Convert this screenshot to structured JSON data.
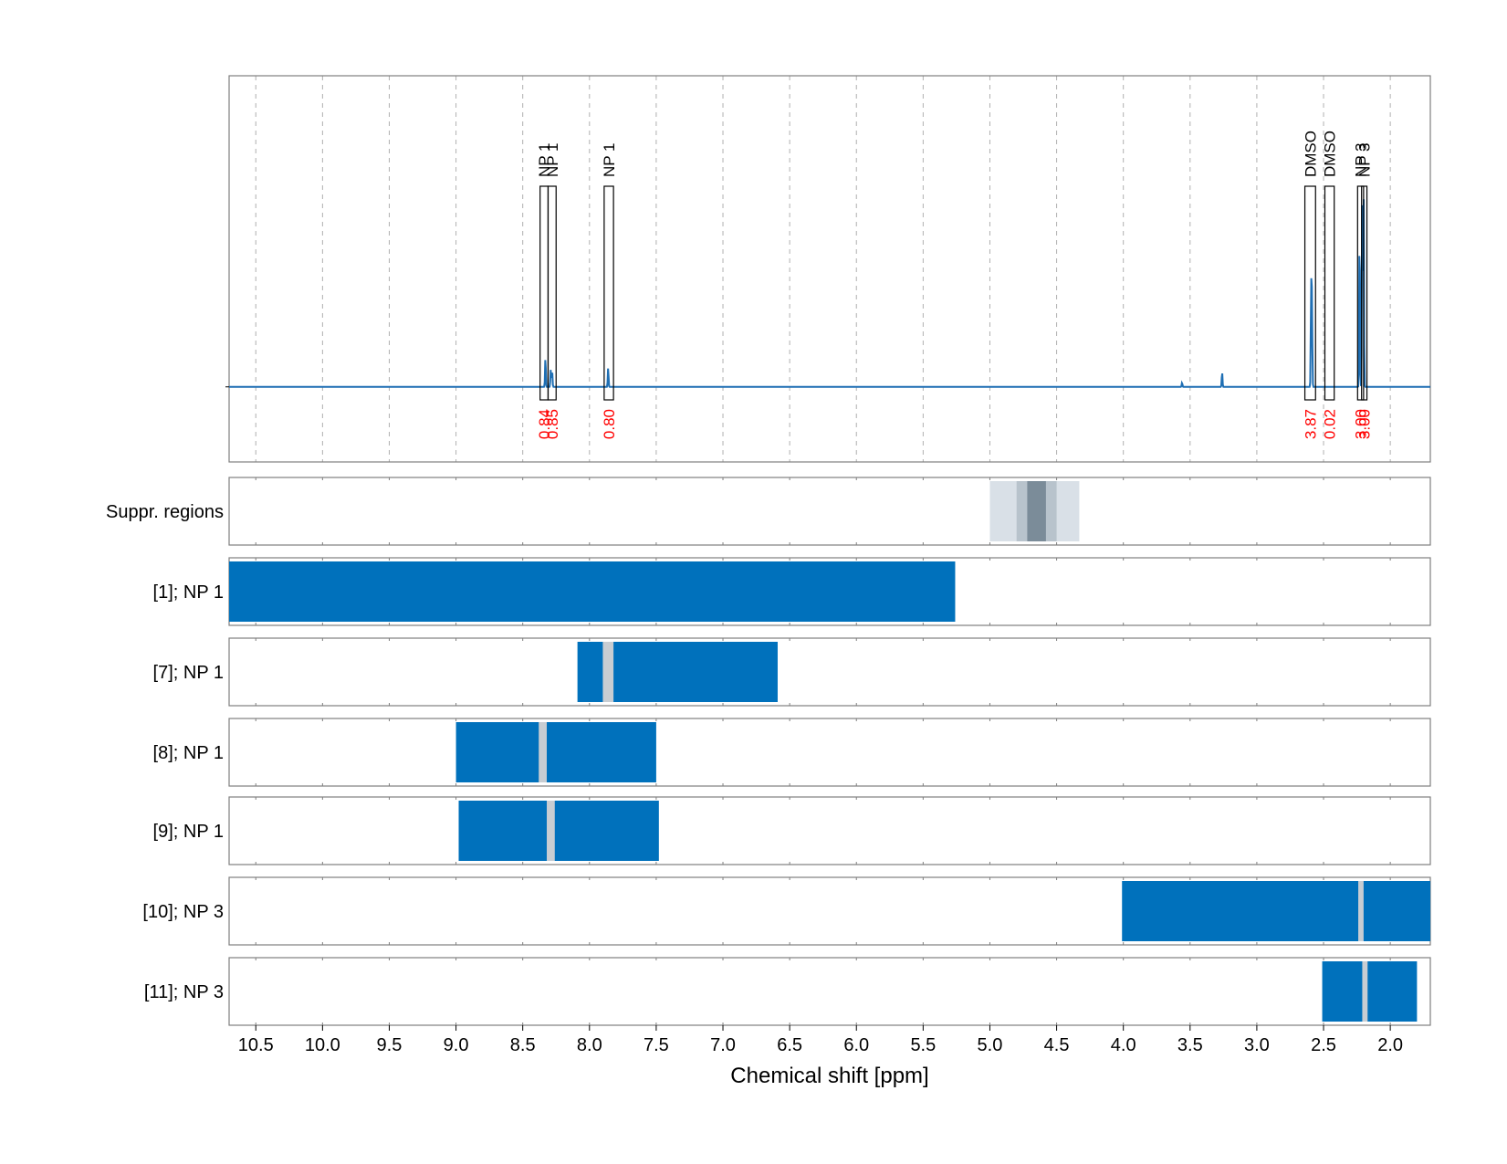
{
  "colors": {
    "spectrum": "#1f6fb4",
    "bar": "#0071bc",
    "gap": "#c8cdd2",
    "suppr_light": "#d9e0e7",
    "suppr_mid": "#b8c3cc",
    "suppr_dark": "#7b8c99",
    "integral": "#ff0000",
    "grid": "#b0b0b0",
    "frame": "#7f7f7f"
  },
  "chart_data": {
    "type": "line",
    "xlabel": "Chemical shift [ppm]",
    "xlim": [
      10.7,
      1.7
    ],
    "xticks": [
      10.5,
      10.0,
      9.5,
      9.0,
      8.5,
      8.0,
      7.5,
      7.0,
      6.5,
      6.0,
      5.5,
      5.0,
      4.5,
      4.0,
      3.5,
      3.0,
      2.5,
      2.0
    ],
    "xtick_labels": [
      "10.5",
      "10.0",
      "9.5",
      "9.0",
      "8.5",
      "8.0",
      "7.5",
      "7.0",
      "6.5",
      "6.0",
      "5.5",
      "5.0",
      "4.5",
      "4.0",
      "3.5",
      "3.0",
      "2.5",
      "2.0"
    ],
    "grid": "vertical dashed",
    "spectrum": {
      "baseline": 0,
      "ylim": [
        -0.35,
        1.45
      ],
      "peaks": [
        {
          "x": 8.33,
          "height": 0.14
        },
        {
          "x": 8.29,
          "height": 0.08
        },
        {
          "x": 8.28,
          "height": 0.08
        },
        {
          "x": 7.86,
          "height": 0.09
        },
        {
          "x": 3.56,
          "height": 0.02
        },
        {
          "x": 3.26,
          "height": 0.07
        },
        {
          "x": 2.593,
          "height": 0.45
        },
        {
          "x": 2.587,
          "height": 0.4
        },
        {
          "x": 2.23,
          "height": 0.75
        },
        {
          "x": 2.21,
          "height": 0.95
        },
        {
          "x": 2.2,
          "height": 0.92
        }
      ]
    },
    "annotations": [
      {
        "label": "NP 1",
        "integral": "0.84",
        "x_from": 8.37,
        "x_to": 8.31
      },
      {
        "label": "NP 1",
        "integral": "0.85",
        "x_from": 8.31,
        "x_to": 8.25
      },
      {
        "label": "NP 1",
        "integral": "0.80",
        "x_from": 7.89,
        "x_to": 7.82
      },
      {
        "label": "DMSO",
        "integral": "3.87",
        "x_from": 2.64,
        "x_to": 2.56
      },
      {
        "label": "DMSO",
        "integral": "0.02",
        "x_from": 2.49,
        "x_to": 2.42
      },
      {
        "label": "NP 3",
        "integral": "3.00",
        "x_from": 2.245,
        "x_to": 2.2
      },
      {
        "label": "NP 3",
        "integral": "3.00",
        "x_from": 2.215,
        "x_to": 2.175
      }
    ],
    "tracks": [
      {
        "label": "Suppr. regions",
        "type": "suppression",
        "regions": [
          {
            "from": 5.0,
            "to": 4.33,
            "level": "light"
          },
          {
            "from": 4.8,
            "to": 4.5,
            "level": "mid"
          },
          {
            "from": 4.72,
            "to": 4.58,
            "level": "dark"
          }
        ]
      },
      {
        "label": "[1]; NP 1",
        "bars": [
          {
            "from": 10.7,
            "to": 5.26
          }
        ],
        "gaps": []
      },
      {
        "label": "[7]; NP 1",
        "bars": [
          {
            "from": 8.09,
            "to": 6.59
          }
        ],
        "gaps": [
          {
            "from": 7.9,
            "to": 7.82
          }
        ]
      },
      {
        "label": "[8]; NP 1",
        "bars": [
          {
            "from": 9.0,
            "to": 7.5
          }
        ],
        "gaps": [
          {
            "from": 8.38,
            "to": 8.32
          }
        ]
      },
      {
        "label": "[9]; NP 1",
        "bars": [
          {
            "from": 8.98,
            "to": 7.48
          }
        ],
        "gaps": [
          {
            "from": 8.32,
            "to": 8.26
          }
        ]
      },
      {
        "label": "[10]; NP 3",
        "bars": [
          {
            "from": 4.01,
            "to": 1.7
          }
        ],
        "gaps": [
          {
            "from": 2.24,
            "to": 2.2
          }
        ]
      },
      {
        "label": "[11]; NP 3",
        "bars": [
          {
            "from": 2.51,
            "to": 1.8
          }
        ],
        "gaps": [
          {
            "from": 2.21,
            "to": 2.17
          }
        ]
      }
    ]
  }
}
